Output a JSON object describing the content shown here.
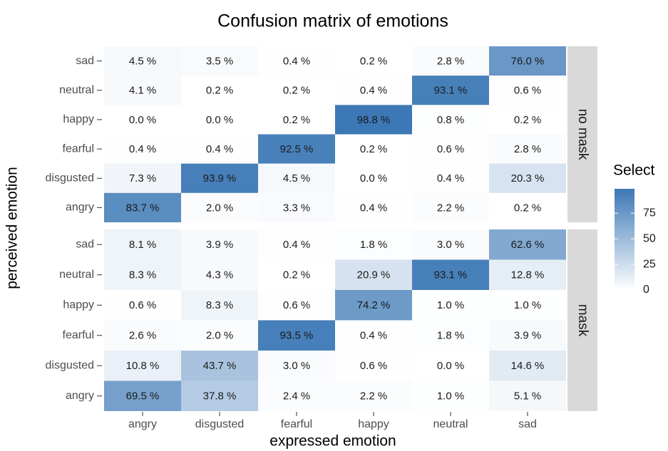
{
  "chart_data": {
    "type": "heatmap",
    "title": "Confusion matrix of emotions",
    "xlabel": "expressed emotion",
    "ylabel": "perceived emotion",
    "x": [
      "angry",
      "disgusted",
      "fearful",
      "happy",
      "neutral",
      "sad"
    ],
    "y": [
      "sad",
      "neutral",
      "happy",
      "fearful",
      "disgusted",
      "angry"
    ],
    "facets": [
      {
        "name": "no mask",
        "values": [
          [
            4.5,
            3.5,
            0.4,
            0.2,
            2.8,
            76.0
          ],
          [
            4.1,
            0.2,
            0.2,
            0.4,
            93.1,
            0.6
          ],
          [
            0.0,
            0.0,
            0.2,
            98.8,
            0.8,
            0.2
          ],
          [
            0.4,
            0.4,
            92.5,
            0.2,
            0.6,
            2.8
          ],
          [
            7.3,
            93.9,
            4.5,
            0.0,
            0.4,
            20.3
          ],
          [
            83.7,
            2.0,
            3.3,
            0.4,
            2.2,
            0.2
          ]
        ],
        "value_labels": [
          [
            "4.5 %",
            "3.5 %",
            "0.4 %",
            "0.2 %",
            "2.8 %",
            "76.0 %"
          ],
          [
            "4.1 %",
            "0.2 %",
            "0.2 %",
            "0.4 %",
            "93.1 %",
            "0.6 %"
          ],
          [
            "0.0 %",
            "0.0 %",
            "0.2 %",
            "98.8 %",
            "0.8 %",
            "0.2 %"
          ],
          [
            "0.4 %",
            "0.4 %",
            "92.5 %",
            "0.2 %",
            "0.6 %",
            "2.8 %"
          ],
          [
            "7.3 %",
            "93.9 %",
            "4.5 %",
            "0.0 %",
            "0.4 %",
            "20.3 %"
          ],
          [
            "83.7 %",
            "2.0 %",
            "3.3 %",
            "0.4 %",
            "2.2 %",
            "0.2 %"
          ]
        ]
      },
      {
        "name": "mask",
        "values": [
          [
            8.1,
            3.9,
            0.4,
            1.8,
            3.0,
            62.6
          ],
          [
            8.3,
            4.3,
            0.2,
            20.9,
            93.1,
            12.8
          ],
          [
            0.6,
            8.3,
            0.6,
            74.2,
            1.0,
            1.0
          ],
          [
            2.6,
            2.0,
            93.5,
            0.4,
            1.8,
            3.9
          ],
          [
            10.8,
            43.7,
            3.0,
            0.6,
            0.0,
            14.6
          ],
          [
            69.5,
            37.8,
            2.4,
            2.2,
            1.0,
            5.1
          ]
        ],
        "value_labels": [
          [
            "8.1 %",
            "3.9 %",
            "0.4 %",
            "1.8 %",
            "3.0 %",
            "62.6 %"
          ],
          [
            "8.3 %",
            "4.3 %",
            "0.2 %",
            "20.9 %",
            "93.1 %",
            "12.8 %"
          ],
          [
            "0.6 %",
            "8.3 %",
            "0.6 %",
            "74.2 %",
            "1.0 %",
            "1.0 %"
          ],
          [
            "2.6 %",
            "2.0 %",
            "93.5 %",
            "0.4 %",
            "1.8 %",
            "3.9 %"
          ],
          [
            "10.8 %",
            "43.7 %",
            "3.0 %",
            "0.6 %",
            "0.0 %",
            "14.6 %"
          ],
          [
            "69.5 %",
            "37.8 %",
            "2.4 %",
            "2.2 %",
            "1.0 %",
            "5.1 %"
          ]
        ]
      }
    ],
    "legend_title": "Select",
    "zlim": [
      0,
      98.8
    ],
    "zticks": [
      0,
      25,
      50,
      75
    ],
    "color_low": "#ffffff",
    "color_high": "#3c78b5"
  }
}
